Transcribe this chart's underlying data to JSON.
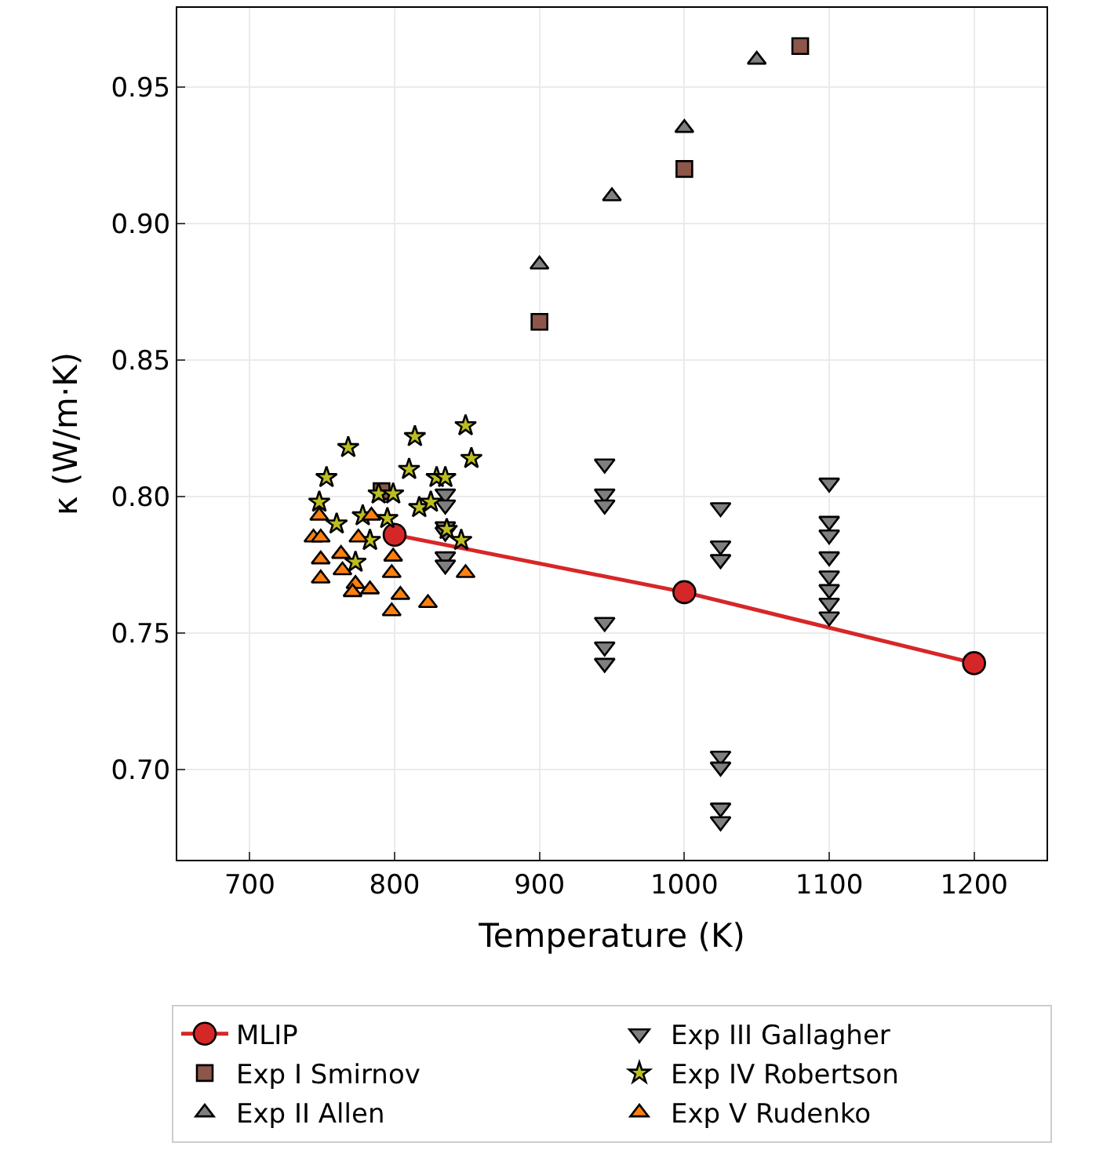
{
  "chart_data": {
    "type": "scatter",
    "xlabel": "Temperature (K)",
    "ylabel": "κ (W/m·K)",
    "xlim": [
      650,
      1250
    ],
    "ylim": [
      0.667,
      0.979
    ],
    "xticks": [
      700,
      800,
      900,
      1000,
      1100,
      1200
    ],
    "yticks": [
      {
        "value": 0.7,
        "label": "0.70"
      },
      0.75,
      {
        "value": 0.8,
        "label": "0.80"
      },
      0.85,
      {
        "value": 0.9,
        "label": "0.90"
      },
      0.95
    ],
    "grid": true,
    "legend": "bottom",
    "series": [
      {
        "name": "MLIP",
        "type": "line",
        "marker": "circle",
        "line_style": "solid",
        "color": "#d62728",
        "x": [
          800,
          1000,
          1200
        ],
        "values": [
          0.786,
          0.765,
          0.739
        ]
      },
      {
        "name": "Exp I Smirnov",
        "marker": "square",
        "color": "#8c564b",
        "x": [
          791,
          900,
          1000,
          1080
        ],
        "values": [
          0.802,
          0.864,
          0.92,
          0.965
        ]
      },
      {
        "name": "Exp II Allen",
        "marker": "triangle",
        "color": "#7f7f7f",
        "x": [
          900,
          950,
          1000,
          1050
        ],
        "values": [
          0.885,
          0.91,
          0.935,
          0.96
        ]
      },
      {
        "name": "Exp III Gallagher",
        "marker": "triangle-down",
        "color": "#7f7f7f",
        "x": [
          835,
          835,
          835,
          835,
          835,
          835,
          945,
          945,
          945,
          945,
          945,
          945,
          1025,
          1025,
          1025,
          1025,
          1025,
          1025,
          1025,
          1100,
          1100,
          1100,
          1100,
          1100,
          1100,
          1100,
          1100
        ],
        "values": [
          0.801,
          0.797,
          0.789,
          0.787,
          0.778,
          0.775,
          0.812,
          0.801,
          0.797,
          0.754,
          0.745,
          0.739,
          0.796,
          0.782,
          0.777,
          0.705,
          0.701,
          0.686,
          0.681,
          0.805,
          0.791,
          0.786,
          0.778,
          0.771,
          0.766,
          0.761,
          0.756
        ]
      },
      {
        "name": "Exp IV Robertson",
        "marker": "star",
        "color": "#bcbd22",
        "x": [
          768,
          814,
          849,
          853,
          753,
          810,
          829,
          835,
          789,
          799,
          748,
          817,
          825,
          778,
          795,
          760,
          836,
          783,
          846,
          773
        ],
        "values": [
          0.818,
          0.822,
          0.826,
          0.814,
          0.807,
          0.81,
          0.807,
          0.807,
          0.801,
          0.801,
          0.798,
          0.796,
          0.798,
          0.793,
          0.792,
          0.79,
          0.788,
          0.784,
          0.784,
          0.776
        ]
      },
      {
        "name": "Exp V Rudenko",
        "marker": "triangle",
        "color": "#ff7f0e",
        "x": [
          748,
          784,
          744,
          749,
          775,
          799,
          749,
          763,
          849,
          749,
          764,
          798,
          773,
          783,
          771,
          804,
          798,
          823
        ],
        "values": [
          0.793,
          0.793,
          0.785,
          0.785,
          0.785,
          0.778,
          0.777,
          0.779,
          0.772,
          0.77,
          0.773,
          0.772,
          0.768,
          0.766,
          0.765,
          0.764,
          0.758,
          0.761
        ]
      }
    ]
  }
}
